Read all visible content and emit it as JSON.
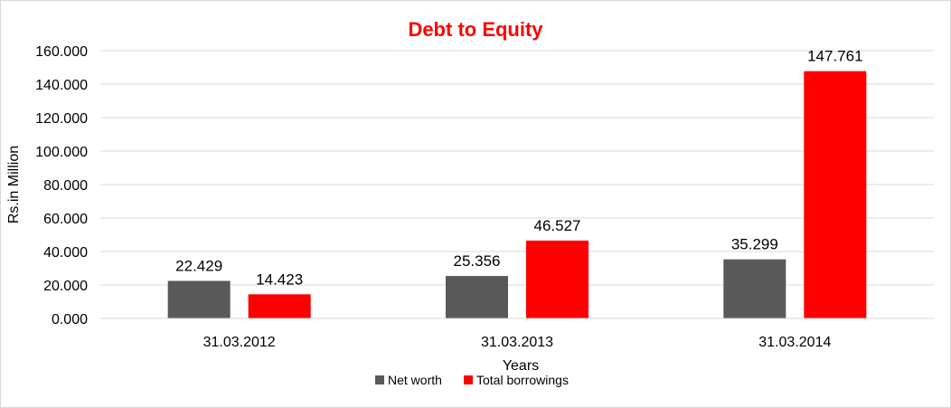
{
  "chart_data": {
    "type": "bar",
    "title": "Debt to Equity",
    "title_color": "#ff0000",
    "xlabel": "Years",
    "ylabel": "Rs.in Million",
    "categories": [
      "31.03.2012",
      "31.03.2013",
      "31.03.2014"
    ],
    "series": [
      {
        "name": "Net worth",
        "color": "#595959",
        "values": [
          22.429,
          25.356,
          35.299
        ]
      },
      {
        "name": "Total borrowings",
        "color": "#ff0000",
        "values": [
          14.423,
          46.527,
          147.761
        ]
      }
    ],
    "ylim": [
      0,
      160
    ],
    "yticks": [
      0,
      20,
      40,
      60,
      80,
      100,
      120,
      140,
      160
    ],
    "ytick_labels": [
      "0.000",
      "20.000",
      "40.000",
      "60.000",
      "80.000",
      "100.000",
      "120.000",
      "140.000",
      "160.000"
    ],
    "data_labels": [
      [
        "22.429",
        "25.356",
        "35.299"
      ],
      [
        "14.423",
        "46.527",
        "147.761"
      ]
    ],
    "grid": true,
    "legend_position": "bottom"
  }
}
